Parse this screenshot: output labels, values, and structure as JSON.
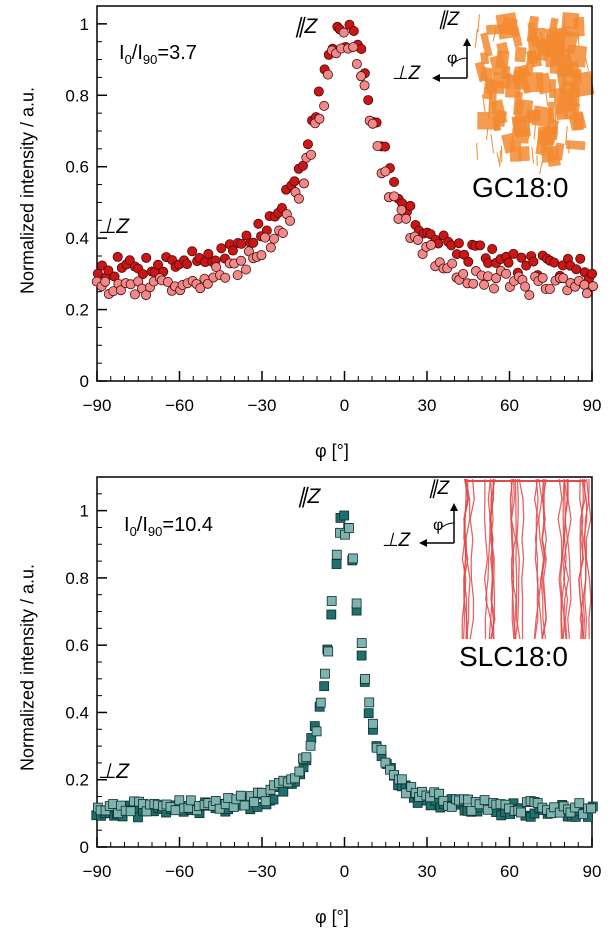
{
  "chart_data": [
    {
      "type": "scatter",
      "xlabel": "φ [°]",
      "ylabel": "Normalized intensity / a.u.",
      "xlim": [
        -90,
        90
      ],
      "ylim": [
        0,
        1.05
      ],
      "xticks": [
        "−90",
        "−60",
        "−30",
        "0",
        "30",
        "60",
        "90"
      ],
      "yticks": [
        "0",
        "0.2",
        "0.4",
        "0.6",
        "0.8",
        "1"
      ],
      "ratio_label": "I0/I90=3.7",
      "ratio_parts": {
        "i": "I",
        "sub0": "0",
        "slash": "/I",
        "sub90": "90",
        "value": "=3.7"
      },
      "annotations": {
        "parallel": "∥Z",
        "perpendicular": "⊥Z",
        "inset_parallel": "∥Z",
        "inset_perpendicular": "⊥Z",
        "inset_angle": "φ"
      },
      "sample_label": "GC18:0",
      "model": {
        "peak": 1.0,
        "base": 0.27,
        "width": 13.5
      },
      "series": [
        {
          "marker": "circle",
          "color": "#cc1616",
          "jitter": 0.03,
          "offset": 0.03
        },
        {
          "marker": "circle",
          "color": "#f08a8a",
          "jitter": 0.03,
          "offset": -0.03
        }
      ],
      "inset_color": "#f28a30"
    },
    {
      "type": "scatter",
      "xlabel": "φ [°]",
      "ylabel": "Normalized intensity / a.u.",
      "xlim": [
        -90,
        90
      ],
      "ylim": [
        0,
        1.1
      ],
      "xticks": [
        "−90",
        "−60",
        "−30",
        "0",
        "30",
        "60",
        "90"
      ],
      "yticks": [
        "0",
        "0.2",
        "0.4",
        "0.6",
        "0.8",
        "1"
      ],
      "ratio_label": "I0/I90=10.4",
      "ratio_parts": {
        "i": "I",
        "sub0": "0",
        "slash": "/I",
        "sub90": "90",
        "value": "=10.4"
      },
      "annotations": {
        "parallel": "∥Z",
        "perpendicular": "⊥Z",
        "inset_parallel": "∥Z",
        "inset_perpendicular": "⊥Z",
        "inset_angle": "φ"
      },
      "sample_label": "SLC18:0",
      "model": {
        "peak": 1.0,
        "base": 0.1,
        "width": 6.5
      },
      "series": [
        {
          "marker": "square",
          "color": "#1f6f6c",
          "jitter": 0.02,
          "offset": 0
        },
        {
          "marker": "square",
          "color": "#7fb3b0",
          "jitter": 0.02,
          "offset": 0.01
        }
      ],
      "inset_color": "#e04a4a"
    }
  ]
}
